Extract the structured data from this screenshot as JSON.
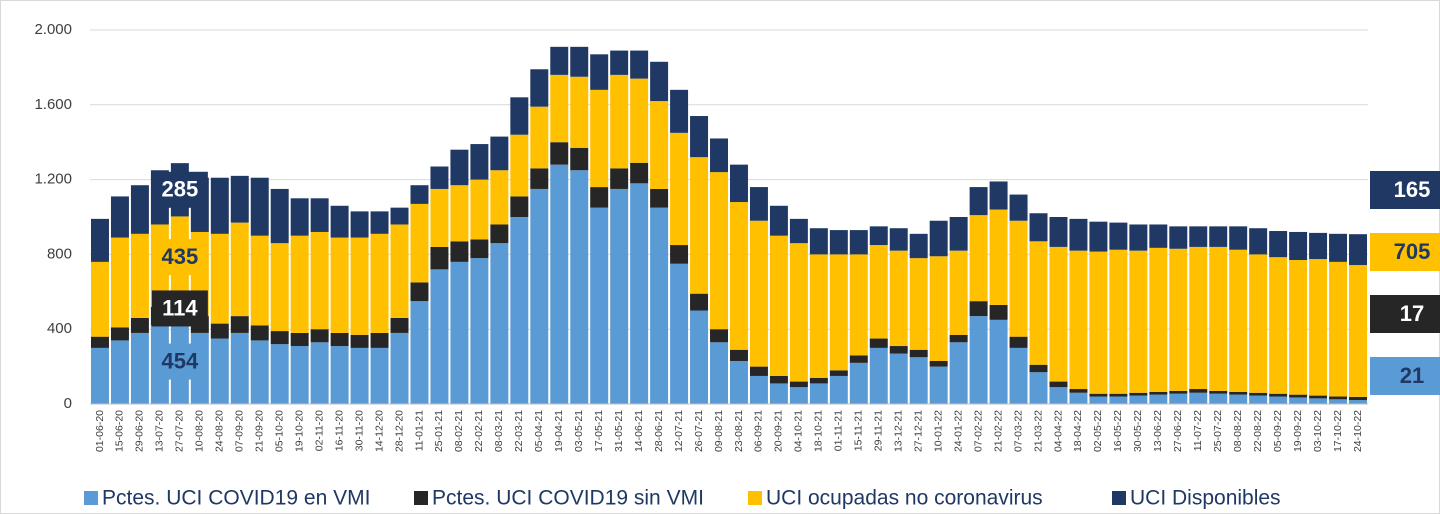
{
  "chart_data": {
    "type": "stacked_bar",
    "categories": [
      "01-06-20",
      "15-06-20",
      "29-06-20",
      "13-07-20",
      "27-07-20",
      "10-08-20",
      "24-08-20",
      "07-09-20",
      "21-09-20",
      "05-10-20",
      "19-10-20",
      "02-11-20",
      "16-11-20",
      "30-11-20",
      "14-12-20",
      "28-12-20",
      "11-01-21",
      "25-01-21",
      "08-02-21",
      "22-02-21",
      "08-03-21",
      "22-03-21",
      "05-04-21",
      "19-04-21",
      "03-05-21",
      "17-05-21",
      "31-05-21",
      "14-06-21",
      "28-06-21",
      "12-07-21",
      "26-07-21",
      "09-08-21",
      "23-08-21",
      "06-09-21",
      "20-09-21",
      "04-10-21",
      "18-10-21",
      "01-11-21",
      "15-11-21",
      "29-11-21",
      "13-12-21",
      "27-12-21",
      "10-01-22",
      "24-01-22",
      "07-02-22",
      "21-02-22",
      "07-03-22",
      "21-03-22",
      "04-04-22",
      "18-04-22",
      "02-05-22",
      "16-05-22",
      "30-05-22",
      "13-06-22",
      "27-06-22",
      "11-07-22",
      "25-07-22",
      "08-08-22",
      "22-08-22",
      "05-09-22",
      "19-09-22",
      "03-10-22",
      "17-10-22",
      "24-10-22"
    ],
    "series": [
      {
        "name": "Pctes. UCI COVID19 en VMI",
        "color": "#5b9bd5",
        "text_color": "#1f3864",
        "values": [
          300,
          340,
          380,
          420,
          454,
          380,
          350,
          380,
          340,
          320,
          310,
          330,
          310,
          300,
          300,
          380,
          550,
          720,
          760,
          780,
          860,
          1000,
          1150,
          1280,
          1250,
          1050,
          1150,
          1180,
          1050,
          750,
          500,
          330,
          230,
          150,
          110,
          90,
          110,
          150,
          220,
          300,
          270,
          250,
          200,
          330,
          470,
          450,
          300,
          170,
          90,
          60,
          40,
          40,
          45,
          50,
          55,
          60,
          55,
          50,
          45,
          40,
          35,
          30,
          25,
          21
        ]
      },
      {
        "name": "Pctes. UCI COVID19 sin VMI",
        "color": "#262626",
        "text_color": "#ffffff",
        "values": [
          60,
          70,
          80,
          100,
          114,
          90,
          80,
          90,
          80,
          70,
          70,
          70,
          70,
          70,
          80,
          80,
          100,
          120,
          110,
          100,
          100,
          110,
          110,
          120,
          120,
          110,
          110,
          110,
          100,
          100,
          90,
          70,
          60,
          50,
          40,
          30,
          30,
          30,
          40,
          50,
          40,
          40,
          30,
          40,
          80,
          80,
          60,
          40,
          30,
          20,
          15,
          15,
          15,
          15,
          15,
          20,
          15,
          15,
          15,
          15,
          15,
          15,
          15,
          17
        ]
      },
      {
        "name": "UCI ocupadas no coronavirus",
        "color": "#ffc000",
        "text_color": "#1f3864",
        "values": [
          400,
          480,
          450,
          440,
          435,
          450,
          480,
          500,
          480,
          470,
          520,
          520,
          510,
          520,
          530,
          500,
          420,
          310,
          300,
          320,
          290,
          330,
          330,
          360,
          380,
          520,
          500,
          450,
          470,
          600,
          730,
          840,
          790,
          780,
          750,
          740,
          660,
          620,
          540,
          500,
          510,
          490,
          560,
          450,
          460,
          510,
          620,
          660,
          720,
          740,
          760,
          770,
          760,
          770,
          760,
          760,
          770,
          760,
          740,
          730,
          720,
          730,
          720,
          705
        ]
      },
      {
        "name": "UCI Disponibles",
        "color": "#1f3864",
        "text_color": "#ffffff",
        "values": [
          230,
          220,
          260,
          290,
          285,
          290,
          300,
          250,
          310,
          290,
          200,
          180,
          170,
          140,
          120,
          90,
          100,
          120,
          190,
          190,
          180,
          200,
          200,
          150,
          160,
          190,
          130,
          150,
          210,
          230,
          220,
          180,
          200,
          180,
          160,
          130,
          140,
          130,
          130,
          100,
          120,
          130,
          190,
          180,
          150,
          150,
          140,
          150,
          160,
          170,
          160,
          145,
          140,
          125,
          120,
          110,
          110,
          125,
          140,
          140,
          150,
          140,
          150,
          165
        ]
      }
    ],
    "ylim": [
      0,
      2000
    ],
    "yticks": [
      0,
      400,
      800,
      {
        "value": 1200,
        "label": "1.200"
      },
      {
        "value": 1600,
        "label": "1.600"
      },
      {
        "value": 2000,
        "label": "2.000"
      }
    ],
    "grid": true
  }
}
